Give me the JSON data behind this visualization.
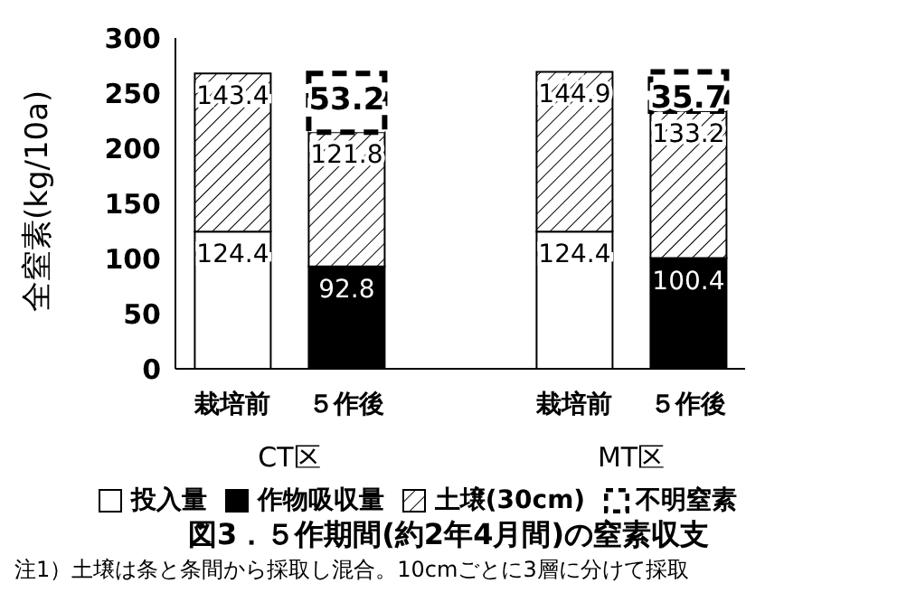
{
  "chart_data": {
    "type": "bar",
    "stacked": true,
    "title": "図3．５作期間(約2年4月間)の窒素収支",
    "ylabel": "全窒素(kg/10a)",
    "categories": [
      "栽培前",
      "５作後",
      null,
      "栽培前",
      "５作後"
    ],
    "series": [
      {
        "name": "投入量",
        "color": "#ffffff",
        "values": [
          124.4,
          null,
          null,
          124.4,
          null
        ]
      },
      {
        "name": "作物吸収量",
        "color": "#000000",
        "values": [
          null,
          92.8,
          null,
          null,
          100.4
        ]
      },
      {
        "name": "土壌(30cm)",
        "color": "#000000",
        "values": [
          143.4,
          121.8,
          null,
          144.9,
          133.2
        ]
      },
      {
        "name": "不明窒素",
        "color": "#ffffff",
        "line_style": "dashed",
        "values": [
          null,
          53.2,
          null,
          null,
          35.7
        ]
      }
    ],
    "ylim": [
      0,
      300
    ],
    "yticks": [
      0,
      50,
      100,
      150,
      200,
      250,
      300
    ],
    "grid": false,
    "data_labels": true,
    "legend": "bottom",
    "annotations": [
      "CT区",
      "MT区",
      "注1）土壌は条と条間から採取し混合。10cmごとに3層に分けて採取"
    ]
  }
}
